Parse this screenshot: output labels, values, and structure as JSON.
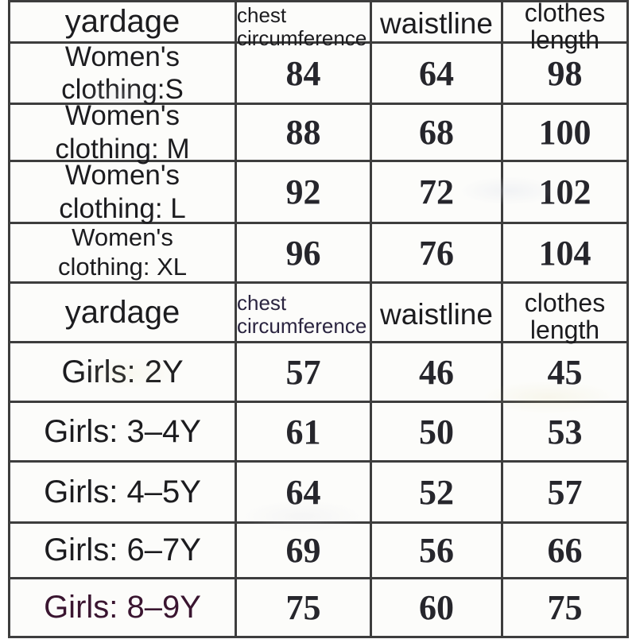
{
  "colors": {
    "background": "#ffffff",
    "cell_background": "#fcfcfa",
    "border": "#3d3d3d",
    "text": "#1c1c1f",
    "number_text": "#26262c",
    "header2_chest_text": "#2b2540",
    "girls_8_9_text": "#3a1530"
  },
  "table": {
    "sections": [
      {
        "header": {
          "yardage": "yardage",
          "chest": "chest circumference",
          "waistline": "waistline",
          "clothes_length": "clothes length"
        },
        "rows": [
          {
            "label_line1": "Women's",
            "label_line2": "clothing:S",
            "chest": "84",
            "waist": "64",
            "length": "98"
          },
          {
            "label_line1": "Women's",
            "label_line2": "clothing: M",
            "chest": "88",
            "waist": "68",
            "length": "100"
          },
          {
            "label_line1": "Women's",
            "label_line2": "clothing: L",
            "chest": "92",
            "waist": "72",
            "length": "102"
          },
          {
            "label_line1": "Women's",
            "label_line2": "clothing: XL",
            "chest": "96",
            "waist": "76",
            "length": "104"
          }
        ]
      },
      {
        "header": {
          "yardage": "yardage",
          "chest": "chest circumference",
          "waistline": "waistline",
          "clothes_length": "clothes length"
        },
        "rows": [
          {
            "label": "Girls: 2Y",
            "chest": "57",
            "waist": "46",
            "length": "45"
          },
          {
            "label": "Girls: 3–4Y",
            "chest": "61",
            "waist": "50",
            "length": "53"
          },
          {
            "label": "Girls: 4–5Y",
            "chest": "64",
            "waist": "52",
            "length": "57"
          },
          {
            "label": "Girls: 6–7Y",
            "chest": "69",
            "waist": "56",
            "length": "66"
          },
          {
            "label": "Girls: 8–9Y",
            "chest": "75",
            "waist": "60",
            "length": "75"
          }
        ]
      }
    ]
  }
}
